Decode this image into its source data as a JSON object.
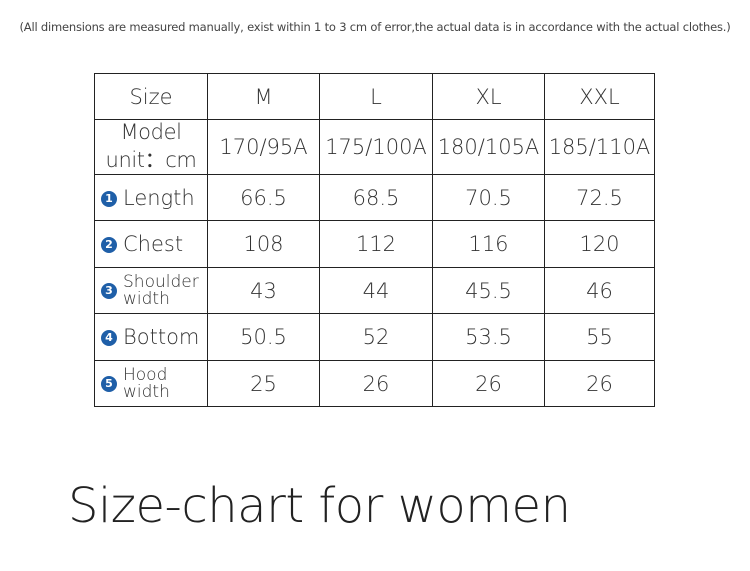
{
  "note": "(All dimensions are measured manually, exist within 1 to 3 cm of error,the actual data is in accordance with the actual clothes.)",
  "table": {
    "header": [
      "Size",
      "M",
      "L",
      "XL",
      "XXL"
    ],
    "model_label": "Model unit：cm",
    "model_values": [
      "170/95A",
      "175/100A",
      "180/105A",
      "185/110A"
    ],
    "rows": [
      {
        "num": "1",
        "label": "Length",
        "values": [
          "66.5",
          "68.5",
          "70.5",
          "72.5"
        ]
      },
      {
        "num": "2",
        "label": "Chest",
        "values": [
          "108",
          "112",
          "116",
          "120"
        ]
      },
      {
        "num": "3",
        "label_line1": "Shoulder",
        "label_line2": "width",
        "values": [
          "43",
          "44",
          "45.5",
          "46"
        ]
      },
      {
        "num": "4",
        "label": "Bottom",
        "values": [
          "50.5",
          "52",
          "53.5",
          "55"
        ]
      },
      {
        "num": "5",
        "label_line1": "Hood",
        "label_line2": "width",
        "values": [
          "25",
          "26",
          "26",
          "26"
        ]
      }
    ]
  },
  "title": "Size-chart for women",
  "colors": {
    "badge": "#1f5fa8",
    "border": "#222222",
    "text": "#333333"
  }
}
